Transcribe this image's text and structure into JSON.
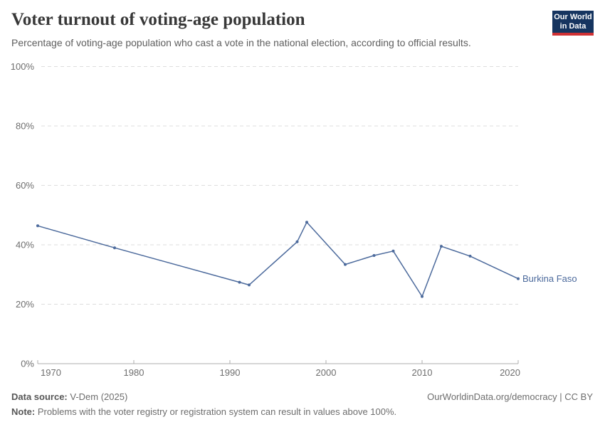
{
  "header": {
    "logo_line1": "Our World",
    "logo_line2": "in Data"
  },
  "chart_data": {
    "type": "line",
    "title": "Voter turnout of voting-age population",
    "subtitle": "Percentage of voting-age population who cast a vote in the national election, according to official results.",
    "entity_label": "Burkina Faso",
    "series": [
      {
        "name": "Burkina Faso",
        "color": "#4c6a9c",
        "points": [
          [
            1970,
            46.4
          ],
          [
            1978,
            39.0
          ],
          [
            1991,
            27.4
          ],
          [
            1992,
            26.5
          ],
          [
            1997,
            41.0
          ],
          [
            1998,
            47.6
          ],
          [
            2002,
            33.4
          ],
          [
            2005,
            36.4
          ],
          [
            2007,
            37.9
          ],
          [
            2010,
            22.6
          ],
          [
            2012,
            39.5
          ],
          [
            2015,
            36.2
          ],
          [
            2020,
            28.6
          ]
        ]
      }
    ],
    "xlim": [
      1970,
      2020
    ],
    "ylim": [
      0,
      100
    ],
    "x_ticks": [
      1970,
      1980,
      1990,
      2000,
      2010,
      2020
    ],
    "y_ticks": [
      0,
      20,
      40,
      60,
      80,
      100
    ],
    "y_suffix": "%",
    "grid": "horizontal-dashed",
    "legend_position": "end-of-line",
    "colors": {
      "line": "#4c6a9c",
      "grid": "#dedede",
      "axis": "#adadad",
      "axis_text": "#6e6e6e"
    }
  },
  "footer": {
    "source_label": "Data source:",
    "source_value": " V-Dem (2025)",
    "note_label": "Note:",
    "note_value": " Problems with the voter registry or registration system can result in values above 100%.",
    "right_text": "OurWorldinData.org/democracy | CC BY"
  }
}
